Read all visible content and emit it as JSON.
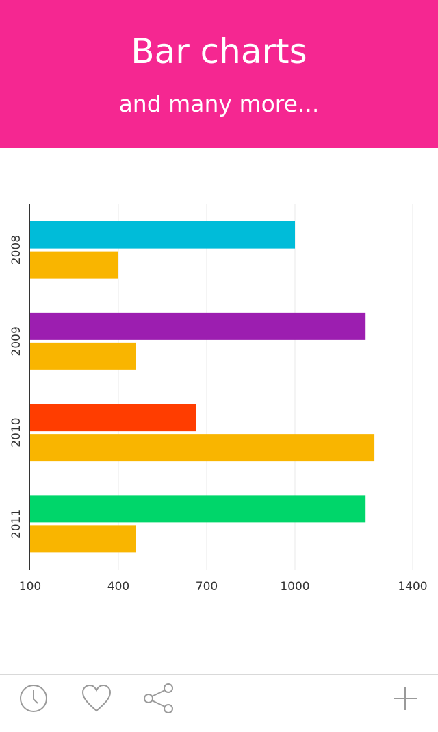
{
  "header": {
    "title": "Bar charts",
    "subtitle": "and many more..."
  },
  "colors": {
    "banner": "#f52791",
    "axis": "#333333",
    "grid": "#e8e8e8",
    "icon": "#9a9a9a"
  },
  "chart_data": {
    "type": "bar",
    "orientation": "horizontal",
    "categories": [
      "2008",
      "2009",
      "2010",
      "2011"
    ],
    "series": [
      {
        "values": [
          1000,
          1240,
          665,
          1240
        ],
        "colors": [
          "#00bcd9",
          "#9c1eb0",
          "#ff3d00",
          "#00d66a"
        ]
      },
      {
        "values": [
          400,
          460,
          1270,
          460
        ],
        "colors": [
          "#f9b500",
          "#f9b500",
          "#f9b500",
          "#f9b500"
        ]
      }
    ],
    "x_ticks": [
      100,
      400,
      700,
      1000,
      1400
    ],
    "xlim": [
      100,
      1400
    ],
    "grid": true,
    "title": "",
    "xlabel": "",
    "ylabel": ""
  },
  "toolbar": {
    "icons": [
      "clock-icon",
      "heart-icon",
      "share-icon",
      "plus-icon"
    ]
  }
}
